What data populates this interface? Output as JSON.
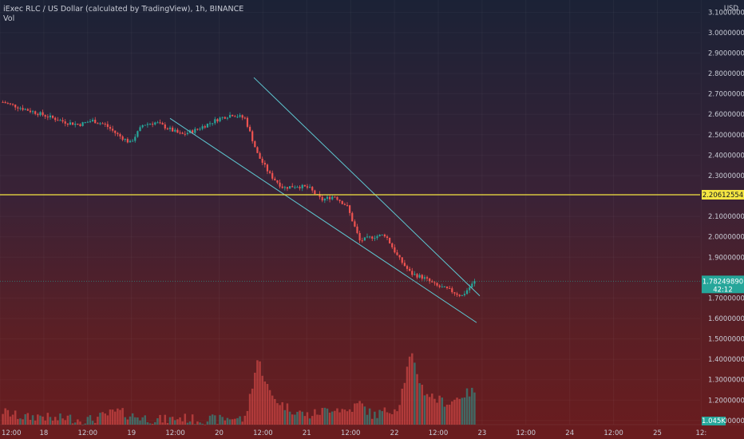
{
  "legend": {
    "title": "iExec RLC / US Dollar (calculated by TradingView), 1h, BINANCE",
    "vol": "Vol"
  },
  "colors": {
    "up": "#26a69a",
    "down": "#ef5350",
    "trendline": "#5ec8d2",
    "hline": "#f5e642",
    "price_tag": "#26a69a"
  },
  "price_axis": {
    "currency": "USD",
    "ticks": [
      "3.10000000",
      "3.00000000",
      "2.90000000",
      "2.80000000",
      "2.70000000",
      "2.60000000",
      "2.50000000",
      "2.40000000",
      "2.30000000",
      "2.10000000",
      "2.00000000",
      "1.90000000",
      "1.70000000",
      "1.60000000",
      "1.50000000",
      "1.40000000",
      "1.30000000",
      "1.20000000",
      "1.10000000"
    ]
  },
  "time_axis": {
    "labels": [
      "12:00",
      "18",
      "12:00",
      "19",
      "12:00",
      "20",
      "12:00",
      "21",
      "12:00",
      "22",
      "12:00",
      "23",
      "12:00",
      "24",
      "12:00",
      "25",
      "12:"
    ]
  },
  "hline_tag": {
    "value": "2.20612554"
  },
  "last_price_tag": {
    "value": "1.78249890",
    "countdown": "42:12"
  },
  "volume_tag": {
    "value": "1.045K"
  },
  "chart_data": {
    "type": "candlestick",
    "interval": "1h",
    "y_unit": "USD",
    "ylim": [
      1.08,
      3.16
    ],
    "horizontal_line": 2.20612554,
    "last_price": 1.7824989,
    "anchors_x": [
      "12:00",
      "18",
      "12:00",
      "19",
      "12:00",
      "20",
      "12:00",
      "21",
      "12:00",
      "22",
      "12:00",
      "23"
    ],
    "price_path": [
      2.66,
      2.64,
      2.62,
      2.6,
      2.58,
      2.56,
      2.55,
      2.57,
      2.55,
      2.5,
      2.46,
      2.55,
      2.56,
      2.53,
      2.5,
      2.52,
      2.55,
      2.58,
      2.6,
      2.58,
      2.4,
      2.3,
      2.24,
      2.25,
      2.24,
      2.18,
      2.2,
      2.15,
      1.98,
      2.0,
      2.01,
      1.9,
      1.82,
      1.8,
      1.76,
      1.74,
      1.71,
      1.78
    ],
    "volume_path": [
      1.12,
      1.1,
      1.09,
      1.1,
      1.08,
      1.09,
      1.08,
      1.08,
      1.1,
      1.12,
      1.1,
      1.09,
      1.08,
      1.08,
      1.09,
      1.08,
      1.08,
      1.08,
      1.09,
      1.08,
      1.38,
      1.2,
      1.15,
      1.12,
      1.1,
      1.12,
      1.14,
      1.12,
      1.16,
      1.1,
      1.12,
      1.14,
      1.4,
      1.22,
      1.18,
      1.16,
      1.2,
      1.22
    ],
    "trendlines": [
      {
        "from": [
          "upper-start",
          2.78
        ],
        "to": [
          "upper-end",
          1.75
        ]
      },
      {
        "from": [
          "lower-start",
          2.58
        ],
        "to": [
          "lower-end",
          1.58
        ]
      }
    ]
  }
}
